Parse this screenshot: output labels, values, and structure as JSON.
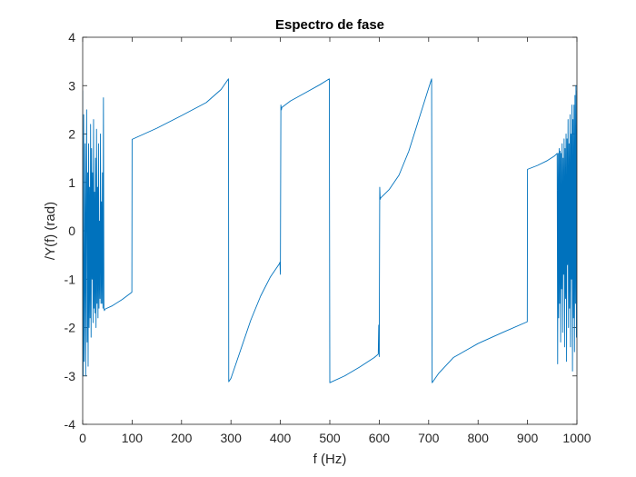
{
  "chart_data": {
    "type": "line",
    "title": "Espectro de fase",
    "xlabel": "f (Hz)",
    "ylabel": "/Y(f) (rad)",
    "xlim": [
      0,
      1000
    ],
    "ylim": [
      -4,
      4
    ],
    "grid": false,
    "legend": "none",
    "x_ticks": [
      0,
      100,
      200,
      300,
      400,
      500,
      600,
      700,
      800,
      900,
      1000
    ],
    "y_ticks": [
      -4,
      -3,
      -2,
      -1,
      0,
      1,
      2,
      3,
      4
    ],
    "x_tick_labels": [
      "0",
      "100",
      "200",
      "300",
      "400",
      "500",
      "600",
      "700",
      "800",
      "900",
      "1000"
    ],
    "y_tick_labels": [
      "-4",
      "-3",
      "-2",
      "-1",
      "0",
      "1",
      "2",
      "3",
      "4"
    ],
    "series": [
      {
        "color": "#0072bd",
        "points": [
          [
            0,
            2.9
          ],
          [
            1,
            -3.0
          ],
          [
            2,
            2.4
          ],
          [
            3,
            -2.7
          ],
          [
            4,
            -1.2
          ],
          [
            5,
            1.8
          ],
          [
            6,
            -3.0
          ],
          [
            7,
            0.5
          ],
          [
            8,
            2.5
          ],
          [
            9,
            -2.3
          ],
          [
            10,
            1.2
          ],
          [
            11,
            -2.8
          ],
          [
            12,
            1.8
          ],
          [
            13,
            -2.0
          ],
          [
            14,
            0.9
          ],
          [
            15,
            -1.8
          ],
          [
            16,
            2.2
          ],
          [
            17,
            -2.2
          ],
          [
            18,
            1.7
          ],
          [
            19,
            -1.0
          ],
          [
            20,
            1.2
          ],
          [
            21,
            -1.9
          ],
          [
            22,
            2.3
          ],
          [
            23,
            -1.6
          ],
          [
            24,
            0.8
          ],
          [
            25,
            -1.7
          ],
          [
            26,
            1.5
          ],
          [
            27,
            -2.0
          ],
          [
            28,
            2.1
          ],
          [
            29,
            -1.5
          ],
          [
            30,
            0.9
          ],
          [
            31,
            -1.8
          ],
          [
            32,
            1.8
          ],
          [
            33,
            -1.6
          ],
          [
            34,
            0.2
          ],
          [
            35,
            -1.4
          ],
          [
            36,
            2.0
          ],
          [
            37,
            -1.5
          ],
          [
            38,
            0.6
          ],
          [
            39,
            -1.5
          ],
          [
            40,
            1.2
          ],
          [
            41,
            -1.6
          ],
          [
            42,
            2.75
          ],
          [
            43,
            -1.6
          ],
          [
            44,
            -1.65
          ],
          [
            45,
            -1.62
          ],
          [
            60,
            -1.55
          ],
          [
            80,
            -1.42
          ],
          [
            99.5,
            -1.27
          ],
          [
            100,
            1.89
          ],
          [
            150,
            2.12
          ],
          [
            200,
            2.38
          ],
          [
            250,
            2.65
          ],
          [
            280,
            2.92
          ],
          [
            295,
            3.14
          ],
          [
            295.5,
            -3.12
          ],
          [
            300,
            -3.05
          ],
          [
            320,
            -2.45
          ],
          [
            340,
            -1.85
          ],
          [
            360,
            -1.35
          ],
          [
            380,
            -0.95
          ],
          [
            398,
            -0.68
          ],
          [
            399,
            -0.65
          ],
          [
            400,
            -0.9
          ],
          [
            401,
            2.6
          ],
          [
            402,
            2.5
          ],
          [
            403,
            2.55
          ],
          [
            420,
            2.68
          ],
          [
            450,
            2.85
          ],
          [
            480,
            3.02
          ],
          [
            499,
            3.14
          ],
          [
            500,
            -3.14
          ],
          [
            530,
            -3.0
          ],
          [
            560,
            -2.82
          ],
          [
            590,
            -2.62
          ],
          [
            598,
            -2.55
          ],
          [
            599,
            -1.95
          ],
          [
            600,
            -2.6
          ],
          [
            601,
            0.9
          ],
          [
            602,
            0.65
          ],
          [
            603,
            0.68
          ],
          [
            620,
            0.85
          ],
          [
            640,
            1.15
          ],
          [
            660,
            1.65
          ],
          [
            680,
            2.3
          ],
          [
            700,
            2.95
          ],
          [
            706,
            3.14
          ],
          [
            707,
            -3.14
          ],
          [
            720,
            -2.95
          ],
          [
            750,
            -2.62
          ],
          [
            800,
            -2.33
          ],
          [
            850,
            -2.1
          ],
          [
            899.5,
            -1.88
          ],
          [
            900,
            1.27
          ],
          [
            920,
            1.35
          ],
          [
            940,
            1.45
          ],
          [
            955,
            1.55
          ],
          [
            960,
            1.6
          ],
          [
            961,
            -2.75
          ],
          [
            962,
            1.6
          ],
          [
            963,
            -1.8
          ],
          [
            964,
            1.7
          ],
          [
            965,
            -1.5
          ],
          [
            966,
            1.65
          ],
          [
            967,
            -2.3
          ],
          [
            968,
            1.6
          ],
          [
            969,
            -1.2
          ],
          [
            970,
            1.8
          ],
          [
            971,
            -2.1
          ],
          [
            972,
            1.5
          ],
          [
            973,
            -0.9
          ],
          [
            974,
            1.9
          ],
          [
            975,
            -2.4
          ],
          [
            976,
            1.7
          ],
          [
            977,
            -1.4
          ],
          [
            978,
            2.0
          ],
          [
            979,
            -2.7
          ],
          [
            980,
            1.9
          ],
          [
            981,
            -0.7
          ],
          [
            982,
            2.3
          ],
          [
            983,
            -2.0
          ],
          [
            984,
            1.8
          ],
          [
            985,
            -1.6
          ],
          [
            986,
            2.4
          ],
          [
            987,
            -2.4
          ],
          [
            988,
            2.0
          ],
          [
            989,
            -1.0
          ],
          [
            990,
            2.6
          ],
          [
            991,
            -2.9
          ],
          [
            992,
            2.3
          ],
          [
            993,
            -1.8
          ],
          [
            994,
            2.6
          ],
          [
            995,
            -2.5
          ],
          [
            996,
            2.8
          ],
          [
            997,
            -1.5
          ],
          [
            998,
            3.0
          ],
          [
            999,
            -2.2
          ],
          [
            1000,
            2.9
          ]
        ]
      }
    ]
  }
}
